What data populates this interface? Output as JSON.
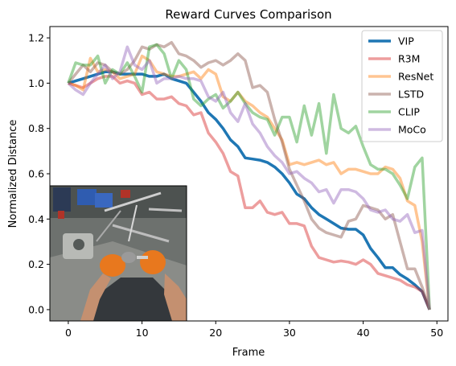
{
  "chart_data": {
    "type": "line",
    "title": "Reward Curves Comparison",
    "xlabel": "Frame",
    "ylabel": "Normalized Distance",
    "xlim": [
      -2.5,
      51.5
    ],
    "ylim": [
      -0.05,
      1.25
    ],
    "xticks": [
      0,
      10,
      20,
      30,
      40,
      50
    ],
    "yticks": [
      0.0,
      0.2,
      0.4,
      0.6,
      0.8,
      1.0,
      1.2
    ],
    "legend_position": "top-right",
    "grid": false,
    "x": [
      0,
      1,
      2,
      3,
      4,
      5,
      6,
      7,
      8,
      9,
      10,
      11,
      12,
      13,
      14,
      15,
      16,
      17,
      18,
      19,
      20,
      21,
      22,
      23,
      24,
      25,
      26,
      27,
      28,
      29,
      30,
      31,
      32,
      33,
      34,
      35,
      36,
      37,
      38,
      39,
      40,
      41,
      42,
      43,
      44,
      45,
      46,
      47,
      48,
      49
    ],
    "series": [
      {
        "name": "VIP",
        "color": "#1f77b4",
        "opacity": 1.0,
        "width": 3.5,
        "values": [
          1.0,
          1.01,
          1.02,
          1.03,
          1.04,
          1.05,
          1.05,
          1.04,
          1.04,
          1.04,
          1.04,
          1.03,
          1.03,
          1.04,
          1.02,
          1.01,
          1.0,
          0.96,
          0.92,
          0.87,
          0.84,
          0.8,
          0.75,
          0.72,
          0.67,
          0.665,
          0.66,
          0.65,
          0.63,
          0.6,
          0.56,
          0.51,
          0.49,
          0.45,
          0.42,
          0.4,
          0.38,
          0.36,
          0.355,
          0.355,
          0.33,
          0.27,
          0.23,
          0.185,
          0.185,
          0.155,
          0.135,
          0.11,
          0.08,
          0.0
        ]
      },
      {
        "name": "R3M",
        "color": "#d62728",
        "opacity": 0.45,
        "width": 3.5,
        "values": [
          1.0,
          0.99,
          0.98,
          1.0,
          1.02,
          1.03,
          1.03,
          1.0,
          1.01,
          1.0,
          0.95,
          0.96,
          0.93,
          0.93,
          0.94,
          0.91,
          0.9,
          0.86,
          0.87,
          0.78,
          0.74,
          0.69,
          0.61,
          0.59,
          0.45,
          0.45,
          0.48,
          0.43,
          0.42,
          0.43,
          0.38,
          0.38,
          0.37,
          0.28,
          0.23,
          0.22,
          0.21,
          0.215,
          0.21,
          0.2,
          0.22,
          0.2,
          0.16,
          0.15,
          0.14,
          0.13,
          0.11,
          0.1,
          0.08,
          0.0
        ]
      },
      {
        "name": "ResNet",
        "color": "#ff7f0e",
        "opacity": 0.45,
        "width": 3.5,
        "values": [
          1.0,
          0.99,
          0.97,
          1.11,
          1.05,
          1.06,
          1.05,
          1.02,
          1.03,
          1.04,
          1.12,
          1.1,
          1.05,
          1.04,
          1.03,
          1.03,
          1.04,
          1.05,
          1.02,
          1.06,
          1.04,
          0.94,
          0.92,
          0.96,
          0.92,
          0.9,
          0.87,
          0.85,
          0.8,
          0.75,
          0.64,
          0.65,
          0.64,
          0.65,
          0.66,
          0.64,
          0.65,
          0.6,
          0.62,
          0.62,
          0.61,
          0.6,
          0.6,
          0.63,
          0.62,
          0.58,
          0.48,
          0.46,
          0.3,
          0.0
        ]
      },
      {
        "name": "LSTD",
        "color": "#8c564b",
        "opacity": 0.45,
        "width": 3.5,
        "values": [
          1.0,
          1.04,
          1.08,
          1.05,
          1.09,
          1.08,
          1.05,
          1.04,
          1.06,
          1.1,
          1.16,
          1.15,
          1.17,
          1.16,
          1.18,
          1.13,
          1.12,
          1.1,
          1.07,
          1.09,
          1.1,
          1.08,
          1.1,
          1.13,
          1.1,
          0.98,
          0.99,
          0.96,
          0.84,
          0.74,
          0.62,
          0.55,
          0.48,
          0.4,
          0.36,
          0.34,
          0.33,
          0.32,
          0.39,
          0.4,
          0.46,
          0.45,
          0.44,
          0.4,
          0.42,
          0.3,
          0.18,
          0.18,
          0.1,
          0.0
        ]
      },
      {
        "name": "CLIP",
        "color": "#2ca02c",
        "opacity": 0.45,
        "width": 3.5,
        "values": [
          1.0,
          1.09,
          1.08,
          1.08,
          1.12,
          1.0,
          1.06,
          1.04,
          1.09,
          1.03,
          0.96,
          1.16,
          1.17,
          1.13,
          1.02,
          1.1,
          1.06,
          0.93,
          0.9,
          0.93,
          0.95,
          0.89,
          0.92,
          0.96,
          0.91,
          0.87,
          0.85,
          0.84,
          0.77,
          0.85,
          0.85,
          0.74,
          0.9,
          0.77,
          0.91,
          0.69,
          0.95,
          0.8,
          0.78,
          0.81,
          0.72,
          0.64,
          0.62,
          0.62,
          0.6,
          0.55,
          0.49,
          0.63,
          0.67,
          0.0
        ]
      },
      {
        "name": "MoCo",
        "color": "#9467bd",
        "opacity": 0.45,
        "width": 3.5,
        "values": [
          1.0,
          0.97,
          0.95,
          1.0,
          1.04,
          1.08,
          1.02,
          1.05,
          1.16,
          1.08,
          1.06,
          1.1,
          1.0,
          1.02,
          1.02,
          1.03,
          1.02,
          1.02,
          1.01,
          0.94,
          0.92,
          0.96,
          0.87,
          0.83,
          0.91,
          0.82,
          0.78,
          0.72,
          0.68,
          0.65,
          0.6,
          0.61,
          0.58,
          0.56,
          0.52,
          0.53,
          0.47,
          0.53,
          0.53,
          0.52,
          0.49,
          0.44,
          0.43,
          0.44,
          0.4,
          0.39,
          0.42,
          0.34,
          0.35,
          0.0
        ]
      }
    ]
  },
  "inset_image": {
    "label": "egocentric-photo-hands-tools",
    "colors": {
      "table": "#6b6e6b",
      "shirt": "#34383c",
      "glove": "#e8781e",
      "arm": "#c49070",
      "tools": "#b8b8b8",
      "blue_parts": "#2f5cb0",
      "red_parts": "#b03328"
    }
  }
}
